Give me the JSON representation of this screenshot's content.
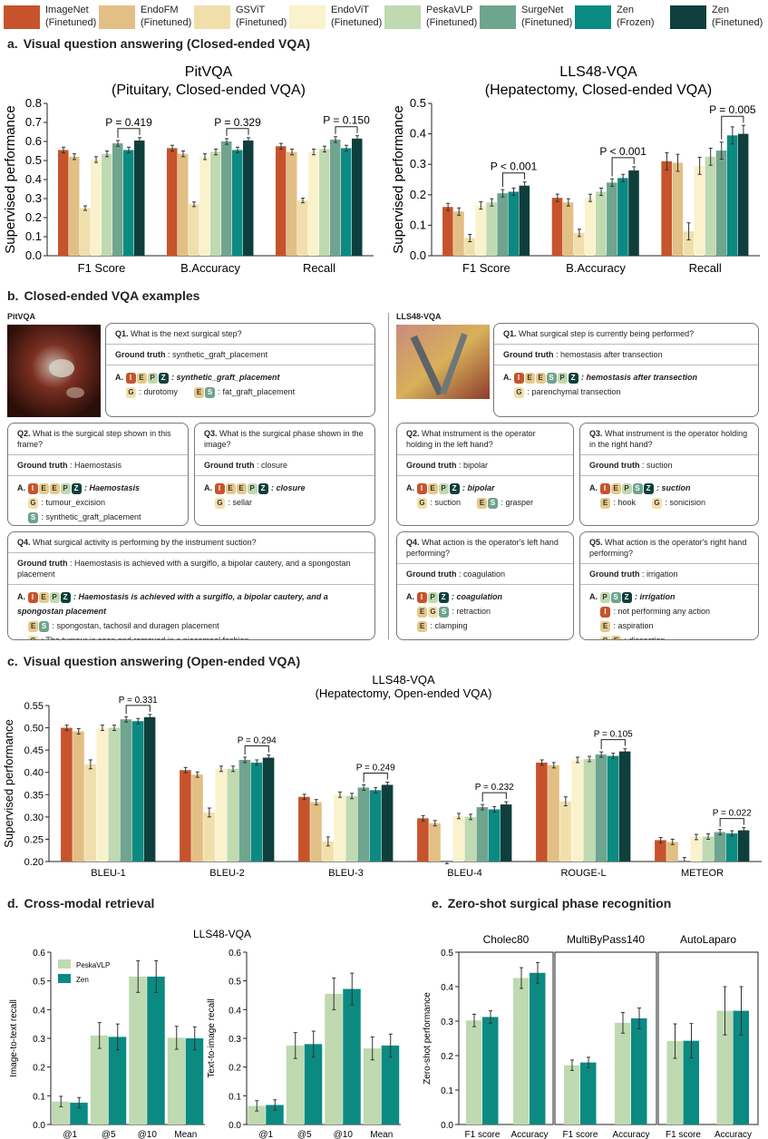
{
  "legend": [
    {
      "name": "ImageNet",
      "sub": "(Finetuned)",
      "color": "#c6532b"
    },
    {
      "name": "EndoFM",
      "sub": "(Finetuned)",
      "color": "#e2bf84"
    },
    {
      "name": "GSViT",
      "sub": "(Finetuned)",
      "color": "#f1dfab"
    },
    {
      "name": "EndoViT",
      "sub": "(Finetuned)",
      "color": "#faf2cc"
    },
    {
      "name": "PeskaVLP",
      "sub": "(Finetuned)",
      "color": "#bfd9b0"
    },
    {
      "name": "SurgeNet",
      "sub": "(Finetuned)",
      "color": "#6fa48f"
    },
    {
      "name": "Zen",
      "sub": "(Frozen)",
      "color": "#0b8a82"
    },
    {
      "name": "Zen",
      "sub": "(Finetuned)",
      "color": "#0e3f3c"
    }
  ],
  "sections": {
    "a": {
      "letter": "a.",
      "title": "Visual question answering (Closed-ended VQA)"
    },
    "b": {
      "letter": "b.",
      "title": "Closed-ended VQA examples"
    },
    "c": {
      "letter": "c.",
      "title": "Visual question answering (Open-ended VQA)"
    },
    "d": {
      "letter": "d.",
      "title": "Cross-modal retrieval"
    },
    "e": {
      "letter": "e.",
      "title": "Zero-shot surgical phase recognition"
    }
  },
  "chart_data": [
    {
      "id": "a-pit",
      "type": "bar",
      "title": "PitVQA",
      "subtitle": "(Pituitary, Closed-ended VQA)",
      "ylabel": "Supervised performance",
      "ylim": [
        0.0,
        0.8
      ],
      "yticks": [
        "0.0",
        "0.1",
        "0.2",
        "0.3",
        "0.4",
        "0.5",
        "0.6",
        "0.7",
        "0.8"
      ],
      "categories": [
        "F1 Score",
        "B.Accuracy",
        "Recall"
      ],
      "series": [
        {
          "name": "ImageNet (Finetuned)",
          "values": [
            0.555,
            0.565,
            0.575
          ]
        },
        {
          "name": "EndoFM (Finetuned)",
          "values": [
            0.52,
            0.535,
            0.545
          ]
        },
        {
          "name": "GSViT (Finetuned)",
          "values": [
            0.25,
            0.27,
            0.29
          ]
        },
        {
          "name": "EndoViT (Finetuned)",
          "values": [
            0.505,
            0.52,
            0.545
          ]
        },
        {
          "name": "PeskaVLP (Finetuned)",
          "values": [
            0.535,
            0.545,
            0.56
          ]
        },
        {
          "name": "SurgeNet (Finetuned)",
          "values": [
            0.59,
            0.6,
            0.61
          ]
        },
        {
          "name": "Zen (Frozen)",
          "values": [
            0.555,
            0.555,
            0.565
          ]
        },
        {
          "name": "Zen (Finetuned)",
          "values": [
            0.605,
            0.605,
            0.615
          ]
        }
      ],
      "annotations": [
        "P = 0.419",
        "P = 0.329",
        "P = 0.150"
      ]
    },
    {
      "id": "a-lls",
      "type": "bar",
      "title": "LLS48-VQA",
      "subtitle": "(Hepatectomy, Closed-ended VQA)",
      "ylabel": "Supervised performance",
      "ylim": [
        0.0,
        0.5
      ],
      "yticks": [
        "0.0",
        "0.1",
        "0.2",
        "0.3",
        "0.4",
        "0.5"
      ],
      "categories": [
        "F1 Score",
        "B.Accuracy",
        "Recall"
      ],
      "series": [
        {
          "name": "ImageNet (Finetuned)",
          "values": [
            0.16,
            0.19,
            0.31
          ]
        },
        {
          "name": "EndoFM (Finetuned)",
          "values": [
            0.145,
            0.175,
            0.305
          ]
        },
        {
          "name": "GSViT (Finetuned)",
          "values": [
            0.058,
            0.075,
            0.08
          ]
        },
        {
          "name": "EndoViT (Finetuned)",
          "values": [
            0.165,
            0.19,
            0.295
          ]
        },
        {
          "name": "PeskaVLP (Finetuned)",
          "values": [
            0.175,
            0.21,
            0.325
          ]
        },
        {
          "name": "SurgeNet (Finetuned)",
          "values": [
            0.205,
            0.24,
            0.345
          ]
        },
        {
          "name": "Zen (Frozen)",
          "values": [
            0.21,
            0.255,
            0.395
          ]
        },
        {
          "name": "Zen (Finetuned)",
          "values": [
            0.23,
            0.28,
            0.4
          ]
        }
      ],
      "annotations": [
        "P < 0.001",
        "P < 0.001",
        "P = 0.005"
      ]
    },
    {
      "id": "c",
      "type": "bar",
      "title": "LLS48-VQA",
      "subtitle": "(Hepatectomy, Open-ended VQA)",
      "ylabel": "Supervised performance",
      "ylim": [
        0.2,
        0.55
      ],
      "yticks": [
        "0.20",
        "0.25",
        "0.30",
        "0.35",
        "0.40",
        "0.45",
        "0.50",
        "0.55"
      ],
      "categories": [
        "BLEU-1",
        "BLEU-2",
        "BLEU-3",
        "BLEU-4",
        "ROUGE-L",
        "METEOR"
      ],
      "series": [
        {
          "name": "ImageNet (Finetuned)",
          "values": [
            0.5,
            0.405,
            0.345,
            0.297,
            0.422,
            0.248
          ]
        },
        {
          "name": "EndoFM (Finetuned)",
          "values": [
            0.492,
            0.395,
            0.333,
            0.286,
            0.416,
            0.244
          ]
        },
        {
          "name": "GSViT (Finetuned)",
          "values": [
            0.418,
            0.31,
            0.245,
            0.185,
            0.335,
            0.199
          ]
        },
        {
          "name": "EndoViT (Finetuned)",
          "values": [
            0.5,
            0.408,
            0.35,
            0.302,
            0.428,
            0.255
          ]
        },
        {
          "name": "PeskaVLP (Finetuned)",
          "values": [
            0.5,
            0.408,
            0.347,
            0.3,
            0.43,
            0.256
          ]
        },
        {
          "name": "SurgeNet (Finetuned)",
          "values": [
            0.519,
            0.428,
            0.366,
            0.322,
            0.44,
            0.266
          ]
        },
        {
          "name": "Zen (Frozen)",
          "values": [
            0.515,
            0.422,
            0.36,
            0.317,
            0.437,
            0.263
          ]
        },
        {
          "name": "Zen (Finetuned)",
          "values": [
            0.524,
            0.433,
            0.372,
            0.328,
            0.447,
            0.27
          ]
        }
      ],
      "annotations": [
        "P = 0.331",
        "P = 0.294",
        "P = 0.249",
        "P = 0.232",
        "P = 0.105",
        "P = 0.022"
      ]
    },
    {
      "id": "d",
      "type": "bar",
      "title": "LLS48-VQA",
      "legend": [
        {
          "name": "PeskaVLP",
          "color": "#bfd9b0"
        },
        {
          "name": "Zen",
          "color": "#0b8a82"
        }
      ],
      "panels": [
        {
          "ylabel": "Image-to-text recall",
          "ylim": [
            0,
            0.6
          ],
          "yticks": [
            "0.0",
            "0.1",
            "0.2",
            "0.3",
            "0.4",
            "0.5",
            "0.6"
          ],
          "categories": [
            "@1",
            "@5",
            "@10",
            "Mean"
          ],
          "series": [
            {
              "name": "PeskaVLP",
              "values": [
                0.08,
                0.31,
                0.515,
                0.302
              ]
            },
            {
              "name": "Zen",
              "values": [
                0.076,
                0.305,
                0.515,
                0.3
              ]
            }
          ]
        },
        {
          "ylabel": "Text-to-image recall",
          "ylim": [
            0,
            0.6
          ],
          "yticks": [
            "0.0",
            "0.1",
            "0.2",
            "0.3",
            "0.4",
            "0.5",
            "0.6"
          ],
          "categories": [
            "@1",
            "@5",
            "@10",
            "Mean"
          ],
          "series": [
            {
              "name": "PeskaVLP",
              "values": [
                0.065,
                0.275,
                0.455,
                0.265
              ]
            },
            {
              "name": "Zen",
              "values": [
                0.068,
                0.28,
                0.472,
                0.275
              ]
            }
          ]
        }
      ]
    },
    {
      "id": "e",
      "type": "bar",
      "ylabel": "Zero-shot performance",
      "ylim": [
        0.0,
        0.5
      ],
      "yticks": [
        "0.0",
        "0.1",
        "0.2",
        "0.3",
        "0.4",
        "0.5"
      ],
      "panels": [
        {
          "title": "Cholec80",
          "categories": [
            "F1 score",
            "Accuracy"
          ],
          "series": [
            {
              "name": "PeskaVLP",
              "values": [
                0.302,
                0.425
              ]
            },
            {
              "name": "Zen",
              "values": [
                0.312,
                0.44
              ]
            }
          ]
        },
        {
          "title": "MultiByPass140",
          "categories": [
            "F1 score",
            "Accuracy"
          ],
          "series": [
            {
              "name": "PeskaVLP",
              "values": [
                0.172,
                0.295
              ]
            },
            {
              "name": "Zen",
              "values": [
                0.18,
                0.308
              ]
            }
          ]
        },
        {
          "title": "AutoLaparo",
          "categories": [
            "F1 score",
            "Accuracy"
          ],
          "series": [
            {
              "name": "PeskaVLP",
              "values": [
                0.242,
                0.33
              ]
            },
            {
              "name": "Zen",
              "values": [
                0.243,
                0.33
              ]
            }
          ]
        }
      ]
    }
  ],
  "examples": {
    "pit": {
      "label": "PitVQA",
      "q1": {
        "q": "Q1.",
        "text": "What is the next surgical step?",
        "gt": "synthetic_graft_placement",
        "models": [
          "I",
          "E",
          "P",
          "Z"
        ],
        "answer": "synthetic_graft_placement",
        "alts": [
          {
            "models": [
              "G"
            ],
            "text": "durotomy"
          },
          {
            "models": [
              "E",
              "S"
            ],
            "text": "fat_graft_placement"
          }
        ]
      },
      "q2": {
        "q": "Q2.",
        "text": "What is the surgical step shown in this frame?",
        "gt": "Haemostasis",
        "models": [
          "I",
          "E",
          "E",
          "P",
          "Z"
        ],
        "answer": "Haemostasis",
        "alts": [
          {
            "models": [
              "G"
            ],
            "text": "tumour_excision"
          },
          {
            "models": [
              "S"
            ],
            "text": "synthetic_graft_placement"
          }
        ]
      },
      "q3": {
        "q": "Q3.",
        "text": "What is the surgical phase shown in the image?",
        "gt": "closure",
        "models": [
          "I",
          "E",
          "E",
          "P",
          "Z"
        ],
        "answer": "closure",
        "alts": [
          {
            "models": [
              "G"
            ],
            "text": "sellar"
          }
        ]
      },
      "q4": {
        "q": "Q4.",
        "text": "What surgical activity is performing by the instrument suction?",
        "gt": "Haemostasis is achieved with a surgiflo, a bipolar cautery, and a spongostan placement",
        "models": [
          "I",
          "E",
          "P",
          "Z"
        ],
        "answer": "Haemostasis is achieved with a surgiflo, a bipolar cautery, and a spongostan placement",
        "alts": [
          {
            "models": [
              "E",
              "S"
            ],
            "text": "spongostan, tachosil and duragen placement"
          },
          {
            "models": [
              "G"
            ],
            "text": "The tumour is seen and removed in a piecemeal fashion"
          }
        ]
      }
    },
    "lls": {
      "label": "LLS48-VQA",
      "q1": {
        "q": "Q1.",
        "text": "What surgical step is currently being performed?",
        "gt": "hemostasis after transection",
        "models": [
          "I",
          "E",
          "E",
          "S",
          "P",
          "Z"
        ],
        "answer": "hemostasis after transection",
        "alts": [
          {
            "models": [
              "G"
            ],
            "text": "parenchymal transection"
          }
        ]
      },
      "q2": {
        "q": "Q2.",
        "text": "What instrument is the operator holding in the left hand?",
        "gt": "bipolar",
        "models": [
          "I",
          "E",
          "P",
          "Z"
        ],
        "answer": "bipolar",
        "alts": [
          {
            "models": [
              "G"
            ],
            "text": "suction"
          },
          {
            "models": [
              "E",
              "S"
            ],
            "text": "grasper"
          }
        ]
      },
      "q3": {
        "q": "Q3.",
        "text": "What instrument is the operator holding in the right hand?",
        "gt": "suction",
        "models": [
          "I",
          "E",
          "P",
          "S",
          "Z"
        ],
        "answer": "suction",
        "alts": [
          {
            "models": [
              "E"
            ],
            "text": "hook"
          },
          {
            "models": [
              "G"
            ],
            "text": "sonicision"
          }
        ]
      },
      "q4": {
        "q": "Q4.",
        "text": "What action is the operator's left hand performing?",
        "gt": "coagulation",
        "models": [
          "I",
          "P",
          "Z"
        ],
        "answer": "coagulation",
        "alts": [
          {
            "models": [
              "E",
              "G",
              "S"
            ],
            "text": "retraction"
          },
          {
            "models": [
              "E"
            ],
            "text": "clamping"
          }
        ]
      },
      "q5": {
        "q": "Q5.",
        "text": "What action is the operator's right hand performing?",
        "gt": "irrigation",
        "models": [
          "P",
          "S",
          "Z"
        ],
        "answer": "irrigation",
        "alts": [
          {
            "models": [
              "I"
            ],
            "text": "not performing any action"
          },
          {
            "models": [
              "E"
            ],
            "text": "aspiration"
          },
          {
            "models": [
              "G",
              "E"
            ],
            "text": "dissection"
          }
        ]
      }
    },
    "gt_label": "Ground truth",
    "answer_prefix": "A."
  }
}
